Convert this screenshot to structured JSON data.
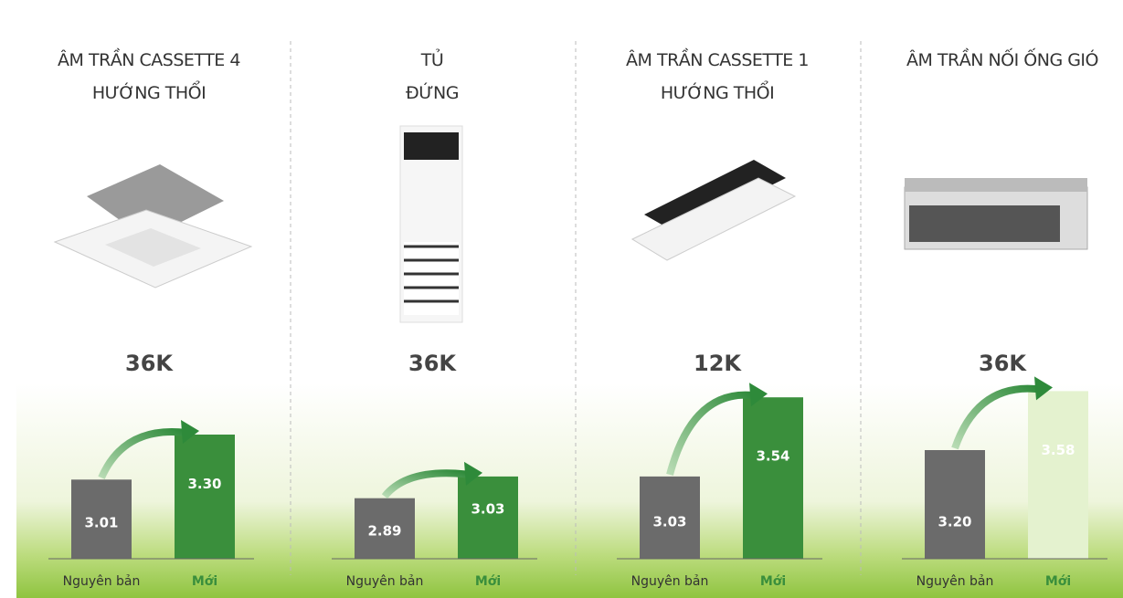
{
  "chart_data": [
    {
      "type": "bar",
      "title": [
        "ÂM TRẦN CASSETTE 4",
        "HƯỚNG THỔI"
      ],
      "subtitle": "36K",
      "categories": [
        "Nguyên bản",
        "Mới"
      ],
      "values": [
        3.01,
        3.3
      ],
      "value_labels": [
        "3.01",
        "3.30"
      ],
      "colors": [
        "#6b6b6b",
        "#3a8f3c"
      ]
    },
    {
      "type": "bar",
      "title": [
        "TỦ",
        "ĐỨNG"
      ],
      "subtitle": "36K",
      "categories": [
        "Nguyên bản",
        "Mới"
      ],
      "values": [
        2.89,
        3.03
      ],
      "value_labels": [
        "2.89",
        "3.03"
      ],
      "colors": [
        "#6b6b6b",
        "#3a8f3c"
      ]
    },
    {
      "type": "bar",
      "title": [
        "ÂM TRẦN CASSETTE 1",
        "HƯỚNG THỔI"
      ],
      "subtitle": "12K",
      "categories": [
        "Nguyên bản",
        "Mới"
      ],
      "values": [
        3.03,
        3.54
      ],
      "value_labels": [
        "3.03",
        "3.54"
      ],
      "colors": [
        "#6b6b6b",
        "#3a8f3c"
      ]
    },
    {
      "type": "bar",
      "title": [
        "ÂM TRẦN NỐI ỐNG GIÓ"
      ],
      "subtitle": "36K",
      "categories": [
        "Nguyên bản",
        "Mới"
      ],
      "values": [
        3.2,
        3.58
      ],
      "value_labels": [
        "3.20",
        "3.58"
      ],
      "colors": [
        "#6b6b6b",
        "#e4f2cf"
      ]
    }
  ]
}
